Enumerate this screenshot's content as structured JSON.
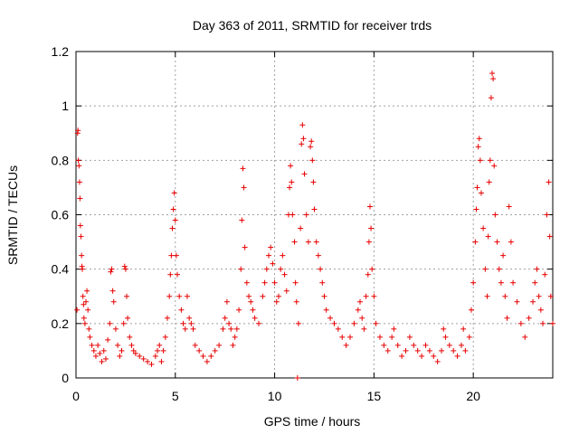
{
  "chart_data": {
    "type": "scatter",
    "title": "Day 363 of 2011, SRMTID for receiver trds",
    "xlabel": "GPS time / hours",
    "ylabel": "SRMTID / TECUs",
    "xlim": [
      0,
      24
    ],
    "ylim": [
      0,
      1.2
    ],
    "xticks": [
      0,
      5,
      10,
      15,
      20
    ],
    "xtick_labels": [
      "0",
      "5",
      "10",
      "15",
      "20"
    ],
    "yticks": [
      0,
      0.2,
      0.4,
      0.6,
      0.8,
      1,
      1.2
    ],
    "ytick_labels": [
      "0",
      "0.2",
      "0.4",
      "0.6",
      "0.8",
      "1",
      "1.2"
    ],
    "grid": true,
    "marker": "+",
    "color": "#e60000",
    "series": [
      {
        "name": "SRMTID",
        "points": [
          [
            0.05,
            0.25
          ],
          [
            0.08,
            0.9
          ],
          [
            0.1,
            0.91
          ],
          [
            0.12,
            0.8
          ],
          [
            0.15,
            0.78
          ],
          [
            0.18,
            0.72
          ],
          [
            0.2,
            0.66
          ],
          [
            0.22,
            0.56
          ],
          [
            0.25,
            0.52
          ],
          [
            0.28,
            0.45
          ],
          [
            0.3,
            0.41
          ],
          [
            0.32,
            0.4
          ],
          [
            0.35,
            0.3
          ],
          [
            0.38,
            0.27
          ],
          [
            0.4,
            0.22
          ],
          [
            0.45,
            0.2
          ],
          [
            0.5,
            0.28
          ],
          [
            0.55,
            0.32
          ],
          [
            0.6,
            0.25
          ],
          [
            0.65,
            0.18
          ],
          [
            0.7,
            0.15
          ],
          [
            0.8,
            0.12
          ],
          [
            0.9,
            0.1
          ],
          [
            1.0,
            0.08
          ],
          [
            1.1,
            0.12
          ],
          [
            1.2,
            0.09
          ],
          [
            1.3,
            0.06
          ],
          [
            1.4,
            0.1
          ],
          [
            1.5,
            0.07
          ],
          [
            1.6,
            0.14
          ],
          [
            1.7,
            0.2
          ],
          [
            1.75,
            0.39
          ],
          [
            1.8,
            0.4
          ],
          [
            1.85,
            0.32
          ],
          [
            1.9,
            0.28
          ],
          [
            2.0,
            0.18
          ],
          [
            2.1,
            0.12
          ],
          [
            2.2,
            0.08
          ],
          [
            2.3,
            0.1
          ],
          [
            2.4,
            0.2
          ],
          [
            2.45,
            0.41
          ],
          [
            2.5,
            0.4
          ],
          [
            2.55,
            0.3
          ],
          [
            2.6,
            0.22
          ],
          [
            2.7,
            0.15
          ],
          [
            2.8,
            0.12
          ],
          [
            2.9,
            0.1
          ],
          [
            3.0,
            0.09
          ],
          [
            3.2,
            0.08
          ],
          [
            3.4,
            0.07
          ],
          [
            3.6,
            0.06
          ],
          [
            3.8,
            0.05
          ],
          [
            4.0,
            0.08
          ],
          [
            4.1,
            0.1
          ],
          [
            4.2,
            0.12
          ],
          [
            4.3,
            0.06
          ],
          [
            4.4,
            0.1
          ],
          [
            4.5,
            0.15
          ],
          [
            4.6,
            0.22
          ],
          [
            4.7,
            0.3
          ],
          [
            4.75,
            0.38
          ],
          [
            4.8,
            0.45
          ],
          [
            4.85,
            0.55
          ],
          [
            4.9,
            0.62
          ],
          [
            4.95,
            0.68
          ],
          [
            5.0,
            0.58
          ],
          [
            5.05,
            0.45
          ],
          [
            5.1,
            0.38
          ],
          [
            5.2,
            0.3
          ],
          [
            5.3,
            0.25
          ],
          [
            5.4,
            0.2
          ],
          [
            5.5,
            0.18
          ],
          [
            5.6,
            0.3
          ],
          [
            5.7,
            0.22
          ],
          [
            5.8,
            0.2
          ],
          [
            5.9,
            0.18
          ],
          [
            6.0,
            0.12
          ],
          [
            6.2,
            0.1
          ],
          [
            6.4,
            0.08
          ],
          [
            6.6,
            0.06
          ],
          [
            6.8,
            0.08
          ],
          [
            7.0,
            0.1
          ],
          [
            7.2,
            0.12
          ],
          [
            7.4,
            0.18
          ],
          [
            7.5,
            0.22
          ],
          [
            7.6,
            0.28
          ],
          [
            7.7,
            0.2
          ],
          [
            7.8,
            0.18
          ],
          [
            7.9,
            0.12
          ],
          [
            8.0,
            0.15
          ],
          [
            8.1,
            0.18
          ],
          [
            8.2,
            0.25
          ],
          [
            8.3,
            0.4
          ],
          [
            8.35,
            0.58
          ],
          [
            8.4,
            0.77
          ],
          [
            8.45,
            0.7
          ],
          [
            8.5,
            0.48
          ],
          [
            8.6,
            0.35
          ],
          [
            8.7,
            0.3
          ],
          [
            8.8,
            0.28
          ],
          [
            8.9,
            0.25
          ],
          [
            9.0,
            0.22
          ],
          [
            9.2,
            0.2
          ],
          [
            9.4,
            0.3
          ],
          [
            9.5,
            0.35
          ],
          [
            9.6,
            0.4
          ],
          [
            9.7,
            0.45
          ],
          [
            9.8,
            0.48
          ],
          [
            9.9,
            0.42
          ],
          [
            10.0,
            0.35
          ],
          [
            10.1,
            0.28
          ],
          [
            10.2,
            0.3
          ],
          [
            10.3,
            0.4
          ],
          [
            10.4,
            0.45
          ],
          [
            10.5,
            0.38
          ],
          [
            10.6,
            0.32
          ],
          [
            10.7,
            0.6
          ],
          [
            10.75,
            0.7
          ],
          [
            10.8,
            0.78
          ],
          [
            10.85,
            0.72
          ],
          [
            10.9,
            0.6
          ],
          [
            11.0,
            0.5
          ],
          [
            11.05,
            0.35
          ],
          [
            11.1,
            0.28
          ],
          [
            11.15,
            0.0
          ],
          [
            11.2,
            0.2
          ],
          [
            11.3,
            0.55
          ],
          [
            11.35,
            0.86
          ],
          [
            11.4,
            0.93
          ],
          [
            11.45,
            0.88
          ],
          [
            11.5,
            0.75
          ],
          [
            11.6,
            0.6
          ],
          [
            11.7,
            0.5
          ],
          [
            11.8,
            0.85
          ],
          [
            11.85,
            0.87
          ],
          [
            11.9,
            0.8
          ],
          [
            11.95,
            0.72
          ],
          [
            12.0,
            0.62
          ],
          [
            12.1,
            0.5
          ],
          [
            12.2,
            0.45
          ],
          [
            12.3,
            0.4
          ],
          [
            12.4,
            0.35
          ],
          [
            12.5,
            0.3
          ],
          [
            12.6,
            0.25
          ],
          [
            12.8,
            0.22
          ],
          [
            13.0,
            0.2
          ],
          [
            13.2,
            0.18
          ],
          [
            13.4,
            0.15
          ],
          [
            13.6,
            0.12
          ],
          [
            13.8,
            0.15
          ],
          [
            14.0,
            0.2
          ],
          [
            14.2,
            0.25
          ],
          [
            14.3,
            0.28
          ],
          [
            14.4,
            0.22
          ],
          [
            14.5,
            0.18
          ],
          [
            14.6,
            0.3
          ],
          [
            14.7,
            0.38
          ],
          [
            14.75,
            0.5
          ],
          [
            14.8,
            0.63
          ],
          [
            14.85,
            0.55
          ],
          [
            14.9,
            0.4
          ],
          [
            15.0,
            0.3
          ],
          [
            15.1,
            0.2
          ],
          [
            15.3,
            0.15
          ],
          [
            15.5,
            0.12
          ],
          [
            15.7,
            0.1
          ],
          [
            15.9,
            0.15
          ],
          [
            16.0,
            0.18
          ],
          [
            16.2,
            0.12
          ],
          [
            16.4,
            0.08
          ],
          [
            16.6,
            0.1
          ],
          [
            16.8,
            0.15
          ],
          [
            17.0,
            0.12
          ],
          [
            17.2,
            0.1
          ],
          [
            17.4,
            0.08
          ],
          [
            17.6,
            0.12
          ],
          [
            17.8,
            0.1
          ],
          [
            18.0,
            0.08
          ],
          [
            18.2,
            0.06
          ],
          [
            18.4,
            0.1
          ],
          [
            18.5,
            0.18
          ],
          [
            18.6,
            0.15
          ],
          [
            18.8,
            0.12
          ],
          [
            19.0,
            0.1
          ],
          [
            19.2,
            0.08
          ],
          [
            19.4,
            0.12
          ],
          [
            19.5,
            0.18
          ],
          [
            19.6,
            0.1
          ],
          [
            19.8,
            0.15
          ],
          [
            19.9,
            0.25
          ],
          [
            20.0,
            0.35
          ],
          [
            20.1,
            0.5
          ],
          [
            20.15,
            0.62
          ],
          [
            20.2,
            0.7
          ],
          [
            20.25,
            0.85
          ],
          [
            20.3,
            0.88
          ],
          [
            20.35,
            0.8
          ],
          [
            20.4,
            0.68
          ],
          [
            20.5,
            0.55
          ],
          [
            20.6,
            0.4
          ],
          [
            20.7,
            0.3
          ],
          [
            20.75,
            0.52
          ],
          [
            20.8,
            0.72
          ],
          [
            20.85,
            0.8
          ],
          [
            20.9,
            1.03
          ],
          [
            20.95,
            1.12
          ],
          [
            21.0,
            1.1
          ],
          [
            21.05,
            0.78
          ],
          [
            21.1,
            0.6
          ],
          [
            21.2,
            0.5
          ],
          [
            21.3,
            0.4
          ],
          [
            21.4,
            0.35
          ],
          [
            21.5,
            0.45
          ],
          [
            21.6,
            0.3
          ],
          [
            21.7,
            0.22
          ],
          [
            21.8,
            0.63
          ],
          [
            21.9,
            0.5
          ],
          [
            22.0,
            0.35
          ],
          [
            22.2,
            0.28
          ],
          [
            22.4,
            0.2
          ],
          [
            22.6,
            0.15
          ],
          [
            22.8,
            0.22
          ],
          [
            23.0,
            0.28
          ],
          [
            23.1,
            0.35
          ],
          [
            23.2,
            0.4
          ],
          [
            23.3,
            0.3
          ],
          [
            23.4,
            0.25
          ],
          [
            23.5,
            0.2
          ],
          [
            23.6,
            0.38
          ],
          [
            23.7,
            0.6
          ],
          [
            23.8,
            0.72
          ],
          [
            23.85,
            0.52
          ],
          [
            23.9,
            0.3
          ],
          [
            24.0,
            0.2
          ]
        ]
      }
    ]
  }
}
